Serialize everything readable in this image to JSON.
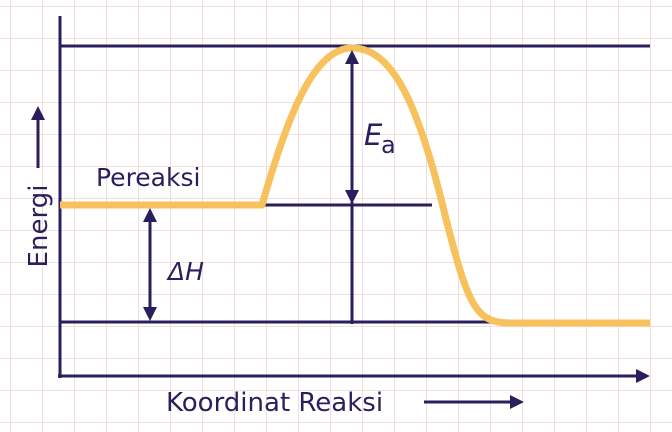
{
  "labels": {
    "y_axis": "Energi",
    "x_axis": "Koordinat Reaksi",
    "reactant": "Pereaksi",
    "activation_symbol": "E",
    "activation_subscript": "a",
    "enthalpy": "ΔH"
  },
  "colors": {
    "axis": "#2a1f5c",
    "curve": "#f7c25e",
    "grid": "#f1dede",
    "background": "#ffffff"
  }
}
